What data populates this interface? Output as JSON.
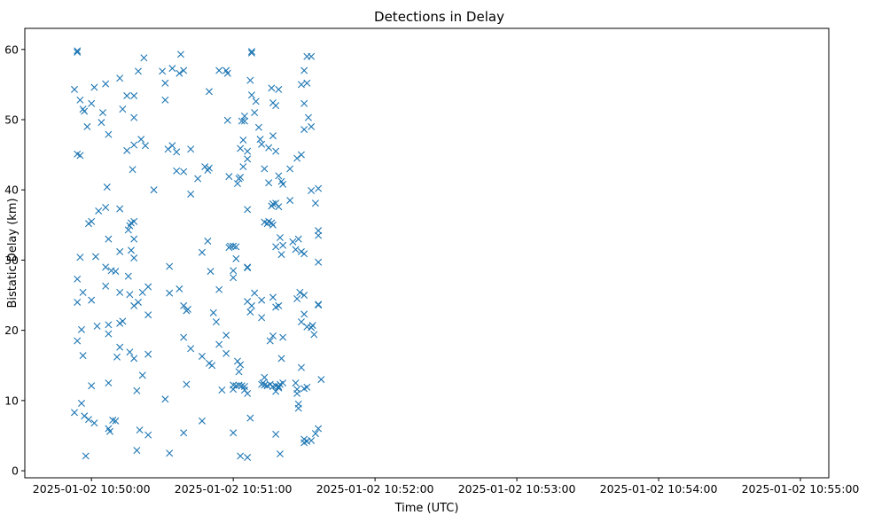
{
  "chart_data": {
    "type": "scatter",
    "title": "Detections in Delay",
    "xlabel": "Time (UTC)",
    "ylabel": "Bistatic Delay (km)",
    "x_unit": "minutes past 2025-01-02 10:50:00",
    "xlim": [
      -0.47,
      5.2
    ],
    "ylim": [
      -1,
      63
    ],
    "x_ticks": [
      {
        "value": 0,
        "label": "2025-01-02 10:50:00"
      },
      {
        "value": 1,
        "label": "2025-01-02 10:51:00"
      },
      {
        "value": 2,
        "label": "2025-01-02 10:52:00"
      },
      {
        "value": 3,
        "label": "2025-01-02 10:53:00"
      },
      {
        "value": 4,
        "label": "2025-01-02 10:54:00"
      },
      {
        "value": 5,
        "label": "2025-01-02 10:55:00"
      }
    ],
    "y_ticks": [
      0,
      10,
      20,
      30,
      40,
      50,
      60
    ],
    "marker": "x",
    "color": "#1f77b4",
    "grid": false,
    "points": [
      [
        -0.1,
        59.8
      ],
      [
        -0.1,
        59.6
      ],
      [
        -0.12,
        54.3
      ],
      [
        -0.1,
        45.1
      ],
      [
        -0.08,
        52.8
      ],
      [
        -0.06,
        51.5
      ],
      [
        -0.05,
        51.2
      ],
      [
        -0.08,
        44.9
      ],
      [
        -0.03,
        49.0
      ],
      [
        0.0,
        52.3
      ],
      [
        0.02,
        54.6
      ],
      [
        0.1,
        55.1
      ],
      [
        0.08,
        51.0
      ],
      [
        0.07,
        49.6
      ],
      [
        0.12,
        47.9
      ],
      [
        -0.08,
        30.4
      ],
      [
        -0.1,
        27.3
      ],
      [
        -0.06,
        25.4
      ],
      [
        -0.1,
        24.0
      ],
      [
        -0.1,
        18.5
      ],
      [
        -0.07,
        20.1
      ],
      [
        -0.06,
        16.4
      ],
      [
        -0.12,
        8.3
      ],
      [
        -0.07,
        9.6
      ],
      [
        -0.05,
        7.8
      ],
      [
        -0.02,
        7.3
      ],
      [
        -0.04,
        2.1
      ],
      [
        0.0,
        12.1
      ],
      [
        0.02,
        6.8
      ],
      [
        0.0,
        24.3
      ],
      [
        0.04,
        20.6
      ],
      [
        -0.02,
        35.2
      ],
      [
        0.0,
        35.5
      ],
      [
        0.05,
        37.0
      ],
      [
        0.1,
        37.5
      ],
      [
        0.11,
        40.4
      ],
      [
        0.03,
        30.5
      ],
      [
        0.1,
        29.0
      ],
      [
        0.1,
        26.3
      ],
      [
        0.12,
        33.0
      ],
      [
        0.14,
        28.5
      ],
      [
        0.12,
        20.8
      ],
      [
        0.12,
        19.5
      ],
      [
        0.12,
        12.5
      ],
      [
        0.12,
        6.0
      ],
      [
        0.13,
        5.6
      ],
      [
        0.15,
        7.2
      ],
      [
        0.2,
        25.4
      ],
      [
        0.17,
        28.4
      ],
      [
        0.2,
        37.3
      ],
      [
        0.2,
        31.2
      ],
      [
        0.22,
        21.3
      ],
      [
        0.2,
        21.0
      ],
      [
        0.2,
        17.6
      ],
      [
        0.18,
        16.2
      ],
      [
        0.17,
        7.1
      ],
      [
        0.2,
        55.9
      ],
      [
        0.22,
        51.5
      ],
      [
        0.25,
        53.4
      ],
      [
        0.25,
        45.6
      ],
      [
        0.3,
        53.4
      ],
      [
        0.3,
        50.3
      ],
      [
        0.3,
        46.4
      ],
      [
        0.35,
        47.2
      ],
      [
        0.38,
        46.3
      ],
      [
        0.33,
        56.9
      ],
      [
        0.37,
        58.8
      ],
      [
        0.29,
        42.9
      ],
      [
        0.28,
        35.3
      ],
      [
        0.27,
        34.9
      ],
      [
        0.3,
        35.5
      ],
      [
        0.26,
        34.3
      ],
      [
        0.28,
        31.4
      ],
      [
        0.3,
        33.0
      ],
      [
        0.3,
        30.3
      ],
      [
        0.26,
        27.7
      ],
      [
        0.27,
        25.1
      ],
      [
        0.33,
        24.0
      ],
      [
        0.3,
        23.5
      ],
      [
        0.36,
        25.4
      ],
      [
        0.4,
        26.2
      ],
      [
        0.4,
        22.2
      ],
      [
        0.27,
        16.9
      ],
      [
        0.3,
        16.0
      ],
      [
        0.32,
        11.4
      ],
      [
        0.36,
        13.6
      ],
      [
        0.34,
        5.8
      ],
      [
        0.4,
        5.1
      ],
      [
        0.32,
        2.9
      ],
      [
        0.4,
        16.6
      ],
      [
        0.44,
        40.0
      ],
      [
        0.5,
        56.9
      ],
      [
        0.52,
        55.2
      ],
      [
        0.52,
        52.8
      ],
      [
        0.54,
        45.8
      ],
      [
        0.57,
        46.3
      ],
      [
        0.57,
        57.3
      ],
      [
        0.62,
        56.6
      ],
      [
        0.65,
        57.0
      ],
      [
        0.63,
        59.3
      ],
      [
        0.6,
        45.4
      ],
      [
        0.65,
        42.6
      ],
      [
        0.6,
        42.7
      ],
      [
        0.7,
        45.8
      ],
      [
        0.75,
        41.6
      ],
      [
        0.8,
        43.3
      ],
      [
        0.82,
        42.8
      ],
      [
        0.83,
        43.1
      ],
      [
        0.7,
        39.4
      ],
      [
        0.78,
        31.1
      ],
      [
        0.82,
        32.7
      ],
      [
        0.84,
        28.4
      ],
      [
        0.86,
        22.5
      ],
      [
        0.88,
        21.2
      ],
      [
        0.9,
        25.8
      ],
      [
        0.95,
        19.3
      ],
      [
        0.97,
        31.8
      ],
      [
        0.98,
        32.0
      ],
      [
        0.55,
        29.1
      ],
      [
        0.55,
        25.3
      ],
      [
        0.62,
        25.9
      ],
      [
        0.65,
        23.5
      ],
      [
        0.68,
        23.0
      ],
      [
        0.67,
        22.8
      ],
      [
        0.65,
        19.0
      ],
      [
        0.7,
        17.4
      ],
      [
        0.78,
        16.3
      ],
      [
        0.83,
        15.3
      ],
      [
        0.85,
        15.0
      ],
      [
        0.9,
        18.0
      ],
      [
        0.92,
        11.5
      ],
      [
        0.95,
        16.7
      ],
      [
        0.52,
        10.2
      ],
      [
        0.55,
        2.5
      ],
      [
        0.65,
        5.4
      ],
      [
        0.67,
        12.3
      ],
      [
        0.78,
        7.1
      ],
      [
        0.83,
        54.0
      ],
      [
        0.9,
        57.0
      ],
      [
        0.95,
        57.0
      ],
      [
        0.96,
        56.6
      ],
      [
        0.96,
        49.9
      ],
      [
        0.97,
        41.9
      ],
      [
        1.0,
        32.0
      ],
      [
        1.0,
        28.5
      ],
      [
        1.0,
        27.5
      ],
      [
        1.02,
        31.9
      ],
      [
        1.02,
        30.2
      ],
      [
        1.05,
        41.8
      ],
      [
        1.04,
        41.6
      ],
      [
        1.07,
        43.3
      ],
      [
        1.03,
        40.9
      ],
      [
        1.05,
        45.9
      ],
      [
        1.07,
        47.1
      ],
      [
        1.06,
        49.8
      ],
      [
        1.08,
        49.8
      ],
      [
        1.08,
        50.5
      ],
      [
        1.1,
        45.5
      ],
      [
        1.1,
        44.4
      ],
      [
        1.12,
        55.6
      ],
      [
        1.13,
        53.5
      ],
      [
        1.15,
        51.0
      ],
      [
        1.16,
        52.6
      ],
      [
        1.18,
        48.9
      ],
      [
        1.2,
        46.5
      ],
      [
        1.19,
        47.2
      ],
      [
        1.1,
        37.2
      ],
      [
        1.1,
        29.0
      ],
      [
        1.1,
        28.9
      ],
      [
        1.1,
        24.1
      ],
      [
        1.12,
        22.6
      ],
      [
        1.13,
        23.5
      ],
      [
        1.15,
        25.3
      ],
      [
        1.2,
        21.8
      ],
      [
        1.2,
        24.3
      ],
      [
        1.03,
        15.6
      ],
      [
        1.05,
        15.1
      ],
      [
        1.04,
        14.1
      ],
      [
        1.02,
        12.1
      ],
      [
        1.04,
        12.2
      ],
      [
        1.06,
        12.1
      ],
      [
        1.08,
        12.0
      ],
      [
        1.08,
        11.5
      ],
      [
        1.1,
        11.0
      ],
      [
        1.12,
        7.5
      ],
      [
        1.13,
        59.7
      ],
      [
        1.13,
        59.5
      ],
      [
        1.0,
        11.6
      ],
      [
        1.0,
        5.4
      ],
      [
        1.05,
        2.1
      ],
      [
        1.1,
        1.9
      ],
      [
        1.0,
        12.2
      ],
      [
        1.2,
        12.3
      ],
      [
        1.21,
        12.5
      ],
      [
        1.22,
        12.2
      ],
      [
        1.24,
        12.1
      ],
      [
        1.26,
        12.3
      ],
      [
        1.28,
        12.0
      ],
      [
        1.3,
        12.1
      ],
      [
        1.32,
        11.8
      ],
      [
        1.33,
        12.3
      ],
      [
        1.35,
        12.5
      ],
      [
        1.3,
        11.3
      ],
      [
        1.32,
        12.0
      ],
      [
        1.22,
        13.3
      ],
      [
        1.22,
        35.4
      ],
      [
        1.24,
        35.2
      ],
      [
        1.25,
        35.5
      ],
      [
        1.27,
        35.3
      ],
      [
        1.28,
        35.0
      ],
      [
        1.27,
        37.7
      ],
      [
        1.28,
        38.0
      ],
      [
        1.3,
        38.1
      ],
      [
        1.32,
        37.6
      ],
      [
        1.33,
        33.2
      ],
      [
        1.35,
        32.1
      ],
      [
        1.34,
        30.8
      ],
      [
        1.3,
        31.9
      ],
      [
        1.28,
        24.7
      ],
      [
        1.32,
        23.5
      ],
      [
        1.3,
        23.3
      ],
      [
        1.35,
        19.0
      ],
      [
        1.26,
        18.5
      ],
      [
        1.28,
        19.2
      ],
      [
        1.34,
        16.0
      ],
      [
        1.25,
        41.0
      ],
      [
        1.22,
        43.0
      ],
      [
        1.25,
        46.0
      ],
      [
        1.28,
        47.7
      ],
      [
        1.3,
        45.5
      ],
      [
        1.32,
        42.0
      ],
      [
        1.34,
        41.2
      ],
      [
        1.35,
        40.8
      ],
      [
        1.28,
        52.4
      ],
      [
        1.3,
        52.0
      ],
      [
        1.32,
        54.3
      ],
      [
        1.27,
        54.5
      ],
      [
        1.3,
        5.2
      ],
      [
        1.33,
        2.4
      ],
      [
        1.4,
        38.5
      ],
      [
        1.42,
        32.6
      ],
      [
        1.44,
        31.5
      ],
      [
        1.46,
        33.0
      ],
      [
        1.48,
        31.2
      ],
      [
        1.5,
        30.9
      ],
      [
        1.47,
        25.4
      ],
      [
        1.45,
        24.5
      ],
      [
        1.5,
        25.0
      ],
      [
        1.5,
        22.3
      ],
      [
        1.48,
        21.2
      ],
      [
        1.52,
        20.5
      ],
      [
        1.55,
        20.4
      ],
      [
        1.56,
        20.7
      ],
      [
        1.57,
        19.4
      ],
      [
        1.6,
        23.7
      ],
      [
        1.6,
        23.6
      ],
      [
        1.4,
        43.0
      ],
      [
        1.45,
        44.5
      ],
      [
        1.48,
        45.0
      ],
      [
        1.5,
        48.6
      ],
      [
        1.53,
        50.3
      ],
      [
        1.55,
        49.0
      ],
      [
        1.5,
        52.3
      ],
      [
        1.48,
        55.0
      ],
      [
        1.52,
        55.2
      ],
      [
        1.5,
        57.0
      ],
      [
        1.52,
        59.0
      ],
      [
        1.55,
        59.0
      ],
      [
        1.58,
        38.1
      ],
      [
        1.55,
        39.9
      ],
      [
        1.6,
        40.2
      ],
      [
        1.6,
        33.5
      ],
      [
        1.6,
        34.2
      ],
      [
        1.6,
        29.7
      ],
      [
        1.44,
        12.5
      ],
      [
        1.45,
        11.6
      ],
      [
        1.45,
        11.0
      ],
      [
        1.46,
        9.5
      ],
      [
        1.46,
        8.9
      ],
      [
        1.5,
        11.7
      ],
      [
        1.52,
        11.9
      ],
      [
        1.48,
        14.7
      ],
      [
        1.5,
        4.5
      ],
      [
        1.52,
        4.2
      ],
      [
        1.55,
        4.3
      ],
      [
        1.5,
        4.0
      ],
      [
        1.58,
        5.3
      ],
      [
        1.6,
        6.0
      ],
      [
        1.62,
        13.0
      ]
    ]
  }
}
